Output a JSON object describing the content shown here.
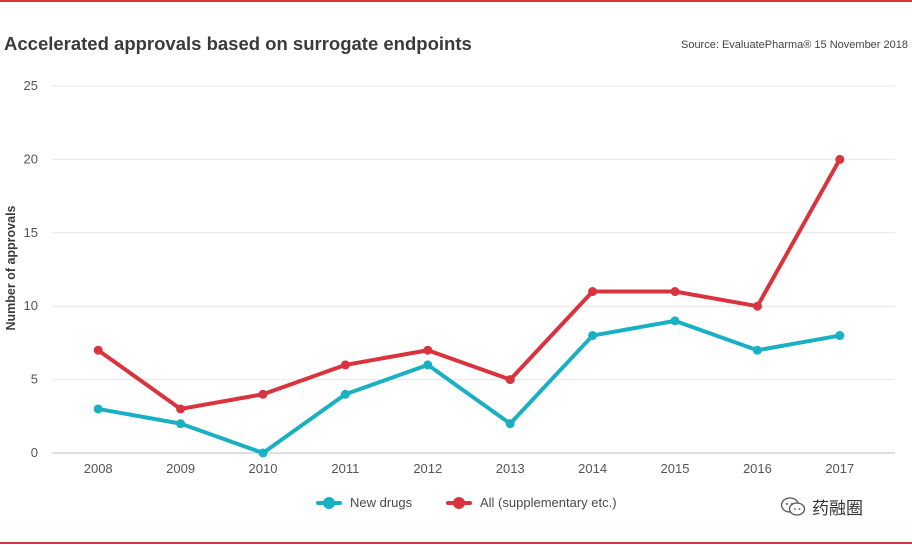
{
  "header": {
    "title": "Accelerated approvals based on surrogate endpoints",
    "source": "Source: EvaluatePharma® 15 November 2018"
  },
  "watermark": {
    "text": "药融圈"
  },
  "colors": {
    "new_drugs": "#1ab0c4",
    "all": "#d9343d",
    "rule": "#d9343d",
    "grid": "#e6e6e6"
  },
  "chart_data": {
    "type": "line",
    "categories": [
      "2008",
      "2009",
      "2010",
      "2011",
      "2012",
      "2013",
      "2014",
      "2015",
      "2016",
      "2017"
    ],
    "series": [
      {
        "name": "New drugs",
        "values": [
          3,
          2,
          0,
          4,
          6,
          2,
          8,
          9,
          7,
          8
        ]
      },
      {
        "name": "All (supplementary etc.)",
        "values": [
          7,
          3,
          4,
          6,
          7,
          5,
          11,
          11,
          10,
          20
        ]
      }
    ],
    "ylabel": "Number of approvals",
    "xlabel": "",
    "ylim": [
      0,
      25
    ],
    "yticks": [
      0,
      5,
      10,
      15,
      20,
      25
    ],
    "grid": true,
    "legend_position": "bottom-center"
  }
}
